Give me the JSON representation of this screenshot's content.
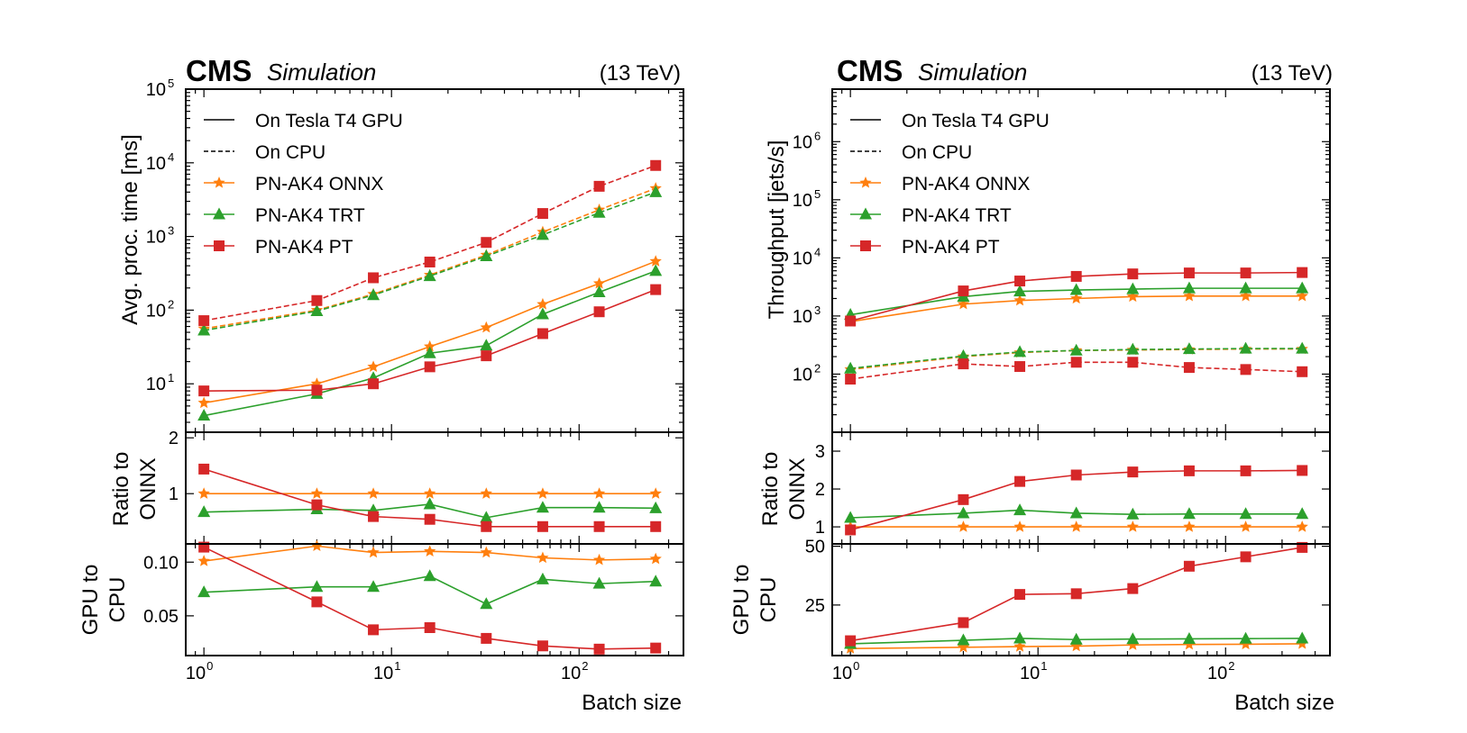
{
  "colors": {
    "onnx": "#ff7f0e",
    "trt": "#2ca02c",
    "pt": "#d62728",
    "axis": "#000000"
  },
  "labels": {
    "cms": "CMS",
    "simulation": "Simulation",
    "energy": "(13 TeV)",
    "xlabel": "Batch size",
    "left_ylabel_main": "Avg. proc. time [ms]",
    "right_ylabel_main": "Throughput [jets/s]",
    "ratio_ylabel_1": "Ratio to",
    "ratio_ylabel_2": "ONNX",
    "gpu_ylabel_1": "GPU to",
    "gpu_ylabel_2": "CPU"
  },
  "legend": {
    "placement": "top-left",
    "entries": [
      {
        "label": "On Tesla T4 GPU",
        "style": "solid"
      },
      {
        "label": "On CPU",
        "style": "dashed"
      },
      {
        "label": "PN-AK4 ONNX",
        "color": "onnx",
        "marker": "star"
      },
      {
        "label": "PN-AK4 TRT",
        "color": "trt",
        "marker": "triangle"
      },
      {
        "label": "PN-AK4 PT",
        "color": "pt",
        "marker": "square"
      }
    ]
  },
  "chart_data": [
    {
      "panel": "left-top",
      "type": "line",
      "x": [
        1,
        4,
        8,
        16,
        32,
        64,
        128,
        256
      ],
      "xscale": "log",
      "yscale": "log",
      "xlim": [
        0.8,
        360
      ],
      "ylim": [
        2.2,
        100000
      ],
      "ylabel": "Avg. proc. time [ms]",
      "yticks": [
        {
          "value": 10,
          "label": "10",
          "sup": "1"
        },
        {
          "value": 100,
          "label": "10",
          "sup": "2"
        },
        {
          "value": 1000,
          "label": "10",
          "sup": "3"
        },
        {
          "value": 10000,
          "label": "10",
          "sup": "4"
        },
        {
          "value": 100000,
          "label": "10",
          "sup": "5"
        }
      ],
      "series": [
        {
          "name": "PN-AK4 ONNX",
          "color": "onnx",
          "marker": "star",
          "dash": true,
          "values": [
            56,
            100,
            165,
            300,
            560,
            1150,
            2300,
            4500
          ]
        },
        {
          "name": "PN-AK4 TRT",
          "color": "trt",
          "marker": "triangle",
          "dash": true,
          "values": [
            53,
            97,
            160,
            290,
            540,
            1050,
            2100,
            4000
          ]
        },
        {
          "name": "PN-AK4 PT",
          "color": "pt",
          "marker": "square",
          "dash": true,
          "values": [
            72,
            135,
            275,
            450,
            830,
            2050,
            4800,
            9200
          ]
        },
        {
          "name": "PN-AK4 ONNX",
          "color": "onnx",
          "marker": "star",
          "dash": false,
          "values": [
            5.5,
            10,
            17,
            32,
            58,
            120,
            230,
            460
          ]
        },
        {
          "name": "PN-AK4 TRT",
          "color": "trt",
          "marker": "triangle",
          "dash": false,
          "values": [
            3.7,
            7.3,
            12,
            26,
            33,
            88,
            175,
            340
          ]
        },
        {
          "name": "PN-AK4 PT",
          "color": "pt",
          "marker": "square",
          "dash": false,
          "values": [
            8,
            8.2,
            10,
            17,
            24,
            48,
            95,
            190
          ]
        }
      ]
    },
    {
      "panel": "left-ratio",
      "type": "line",
      "x": [
        1,
        4,
        8,
        16,
        32,
        64,
        128,
        256
      ],
      "xscale": "log",
      "yscale": "linear",
      "xlim": [
        0.8,
        360
      ],
      "ylim": [
        0.1,
        2.1
      ],
      "yticks": [
        {
          "value": 1,
          "label": "1"
        },
        {
          "value": 2,
          "label": "2"
        }
      ],
      "series": [
        {
          "name": "PN-AK4 ONNX",
          "color": "onnx",
          "marker": "star",
          "dash": false,
          "values": [
            1,
            1,
            1,
            1,
            1,
            1,
            1,
            1
          ]
        },
        {
          "name": "PN-AK4 TRT",
          "color": "trt",
          "marker": "triangle",
          "dash": false,
          "values": [
            0.67,
            0.72,
            0.7,
            0.81,
            0.57,
            0.75,
            0.75,
            0.74
          ]
        },
        {
          "name": "PN-AK4 PT",
          "color": "pt",
          "marker": "square",
          "dash": false,
          "values": [
            1.44,
            0.8,
            0.59,
            0.54,
            0.41,
            0.41,
            0.41,
            0.41
          ]
        }
      ]
    },
    {
      "panel": "left-gpu",
      "type": "line",
      "x": [
        1,
        4,
        8,
        16,
        32,
        64,
        128,
        256
      ],
      "xscale": "log",
      "yscale": "linear",
      "xlim": [
        0.8,
        360
      ],
      "ylim": [
        0.013,
        0.117
      ],
      "yticks": [
        {
          "value": 0.05,
          "label": "0.05"
        },
        {
          "value": 0.1,
          "label": "0.10"
        }
      ],
      "xticks": [
        {
          "value": 1,
          "label": "10",
          "sup": "0"
        },
        {
          "value": 10,
          "label": "10",
          "sup": "1"
        },
        {
          "value": 100,
          "label": "10",
          "sup": "2"
        }
      ],
      "series": [
        {
          "name": "PN-AK4 ONNX",
          "color": "onnx",
          "marker": "star",
          "dash": false,
          "values": [
            0.101,
            0.115,
            0.109,
            0.11,
            0.109,
            0.104,
            0.102,
            0.103
          ]
        },
        {
          "name": "PN-AK4 TRT",
          "color": "trt",
          "marker": "triangle",
          "dash": false,
          "values": [
            0.072,
            0.077,
            0.077,
            0.087,
            0.061,
            0.084,
            0.08,
            0.082
          ]
        },
        {
          "name": "PN-AK4 PT",
          "color": "pt",
          "marker": "square",
          "dash": false,
          "values": [
            0.114,
            0.063,
            0.037,
            0.039,
            0.029,
            0.022,
            0.019,
            0.02
          ]
        }
      ]
    },
    {
      "panel": "right-top",
      "type": "line",
      "x": [
        1,
        4,
        8,
        16,
        32,
        64,
        128,
        256
      ],
      "xscale": "log",
      "yscale": "log",
      "xlim": [
        0.8,
        360
      ],
      "ylim": [
        10,
        8000000
      ],
      "ylabel": "Throughput [jets/s]",
      "yticks": [
        {
          "value": 100,
          "label": "10",
          "sup": "2"
        },
        {
          "value": 1000,
          "label": "10",
          "sup": "3"
        },
        {
          "value": 10000,
          "label": "10",
          "sup": "4"
        },
        {
          "value": 100000,
          "label": "10",
          "sup": "5"
        },
        {
          "value": 1000000,
          "label": "10",
          "sup": "6"
        }
      ],
      "series": [
        {
          "name": "PN-AK4 ONNX",
          "color": "onnx",
          "marker": "star",
          "dash": true,
          "values": [
            120,
            200,
            235,
            255,
            260,
            265,
            270,
            270
          ]
        },
        {
          "name": "PN-AK4 TRT",
          "color": "trt",
          "marker": "triangle",
          "dash": true,
          "values": [
            125,
            205,
            240,
            255,
            265,
            270,
            275,
            275
          ]
        },
        {
          "name": "PN-AK4 PT",
          "color": "pt",
          "marker": "square",
          "dash": true,
          "values": [
            82,
            150,
            135,
            160,
            160,
            130,
            120,
            110
          ]
        },
        {
          "name": "PN-AK4 ONNX",
          "color": "onnx",
          "marker": "star",
          "dash": false,
          "values": [
            800,
            1600,
            1850,
            2000,
            2150,
            2200,
            2200,
            2200
          ]
        },
        {
          "name": "PN-AK4 TRT",
          "color": "trt",
          "marker": "triangle",
          "dash": false,
          "values": [
            1050,
            2150,
            2650,
            2800,
            2900,
            3000,
            3000,
            3000
          ]
        },
        {
          "name": "PN-AK4 PT",
          "color": "pt",
          "marker": "square",
          "dash": false,
          "values": [
            820,
            2700,
            4000,
            4800,
            5300,
            5500,
            5500,
            5600
          ]
        }
      ]
    },
    {
      "panel": "right-ratio",
      "type": "line",
      "x": [
        1,
        4,
        8,
        16,
        32,
        64,
        128,
        256
      ],
      "xscale": "log",
      "yscale": "linear",
      "xlim": [
        0.8,
        360
      ],
      "ylim": [
        0.55,
        3.5
      ],
      "yticks": [
        {
          "value": 1,
          "label": "1"
        },
        {
          "value": 2,
          "label": "2"
        },
        {
          "value": 3,
          "label": "3"
        }
      ],
      "series": [
        {
          "name": "PN-AK4 ONNX",
          "color": "onnx",
          "marker": "star",
          "dash": false,
          "values": [
            1,
            1,
            1,
            1,
            1,
            1,
            1,
            1
          ]
        },
        {
          "name": "PN-AK4 TRT",
          "color": "trt",
          "marker": "triangle",
          "dash": false,
          "values": [
            1.24,
            1.36,
            1.44,
            1.36,
            1.33,
            1.34,
            1.34,
            1.34
          ]
        },
        {
          "name": "PN-AK4 PT",
          "color": "pt",
          "marker": "square",
          "dash": false,
          "values": [
            0.92,
            1.72,
            2.2,
            2.37,
            2.45,
            2.48,
            2.48,
            2.49
          ]
        }
      ]
    },
    {
      "panel": "right-gpu",
      "type": "line",
      "x": [
        1,
        4,
        8,
        16,
        32,
        64,
        128,
        256
      ],
      "xscale": "log",
      "yscale": "linear",
      "xlim": [
        0.8,
        360
      ],
      "ylim": [
        3.5,
        51
      ],
      "yticks": [
        {
          "value": 25,
          "label": "25"
        },
        {
          "value": 50,
          "label": "50"
        }
      ],
      "xticks": [
        {
          "value": 1,
          "label": "10",
          "sup": "0"
        },
        {
          "value": 10,
          "label": "10",
          "sup": "1"
        },
        {
          "value": 100,
          "label": "10",
          "sup": "2"
        }
      ],
      "series": [
        {
          "name": "PN-AK4 ONNX",
          "color": "onnx",
          "marker": "star",
          "dash": false,
          "values": [
            6.5,
            7,
            7.3,
            7.5,
            8,
            8.2,
            8.3,
            8.5
          ]
        },
        {
          "name": "PN-AK4 TRT",
          "color": "trt",
          "marker": "triangle",
          "dash": false,
          "values": [
            8.5,
            10,
            10.8,
            10.3,
            10.5,
            10.6,
            10.7,
            10.8
          ]
        },
        {
          "name": "PN-AK4 PT",
          "color": "pt",
          "marker": "square",
          "dash": false,
          "values": [
            9.8,
            17.5,
            29.5,
            29.8,
            32,
            41.5,
            45.5,
            49.5
          ]
        }
      ]
    }
  ]
}
